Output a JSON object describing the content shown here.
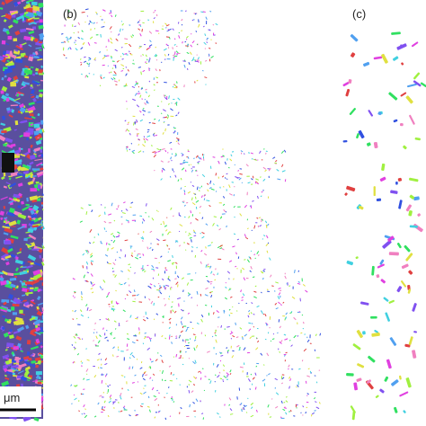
{
  "panels": {
    "b": {
      "label": "(b)"
    },
    "c": {
      "label": "(c)"
    }
  },
  "scale_bar": {
    "label": "μm"
  }
}
